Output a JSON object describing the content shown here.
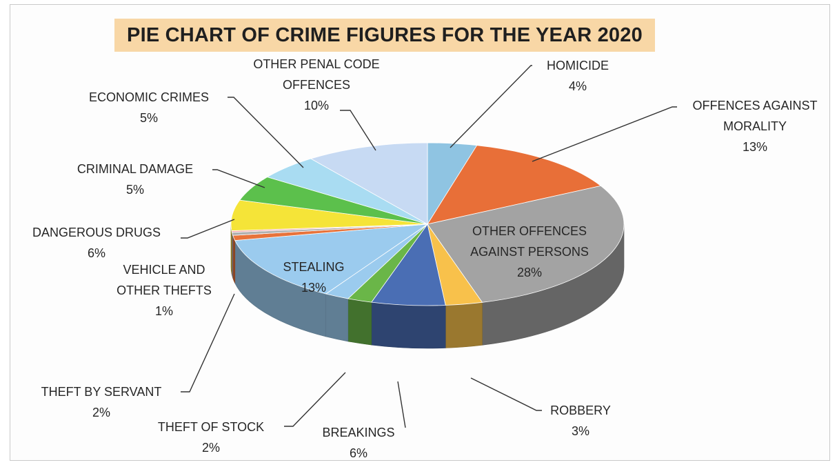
{
  "chart_data": {
    "type": "pie",
    "title": "PIE CHART OF CRIME FIGURES FOR THE YEAR 2020",
    "slices": [
      {
        "label_lines": [
          "HOMICIDE"
        ],
        "value": 4,
        "value_label": "4%",
        "color": "#8fc4e2"
      },
      {
        "label_lines": [
          "OFFENCES AGAINST",
          "MORALITY"
        ],
        "value": 13,
        "value_label": "13%",
        "color": "#e86f38"
      },
      {
        "label_lines": [
          "OTHER OFFENCES",
          "AGAINST PERSONS"
        ],
        "value": 28,
        "value_label": "28%",
        "color": "#a3a3a3"
      },
      {
        "label_lines": [
          "ROBBERY"
        ],
        "value": 3,
        "value_label": "3%",
        "color": "#f8c14b"
      },
      {
        "label_lines": [
          "BREAKINGS"
        ],
        "value": 6,
        "value_label": "6%",
        "color": "#4a6eb4"
      },
      {
        "label_lines": [
          "THEFT OF STOCK"
        ],
        "value": 2,
        "value_label": "2%",
        "color": "#6ab648"
      },
      {
        "label_lines": [
          "THEFT BY SERVANT"
        ],
        "value": 2,
        "value_label": "2%",
        "color": "#9bcbee"
      },
      {
        "label_lines": [
          "STEALING"
        ],
        "value": 13,
        "value_label": "13%",
        "color": "#9bcbee"
      },
      {
        "label_lines": [
          "VEHICLE AND",
          "OTHER THEFTS"
        ],
        "value": 1,
        "value_label": "1%",
        "color": "#e8733b"
      },
      {
        "label_lines": [
          "DANGEROUS DRUGS"
        ],
        "value": 6,
        "value_label": "6%",
        "color": "#f5e438"
      },
      {
        "label_lines": [
          "CRIMINAL DAMAGE"
        ],
        "value": 5,
        "value_label": "5%",
        "color": "#5cc04c"
      },
      {
        "label_lines": [
          "ECONOMIC CRIMES"
        ],
        "value": 5,
        "value_label": "5%",
        "color": "#a9dcf2"
      },
      {
        "label_lines": [
          "OTHER PENAL CODE",
          "OFFENCES"
        ],
        "value": 10,
        "value_label": "10%",
        "color": "#c7daf3"
      }
    ],
    "extra_slices": [
      {
        "color": "#b0b0b0",
        "value": 0.6
      },
      {
        "color": "#f3a3a3",
        "value": 0.3
      }
    ],
    "style": "3d-exploded-none",
    "legend": "none"
  }
}
